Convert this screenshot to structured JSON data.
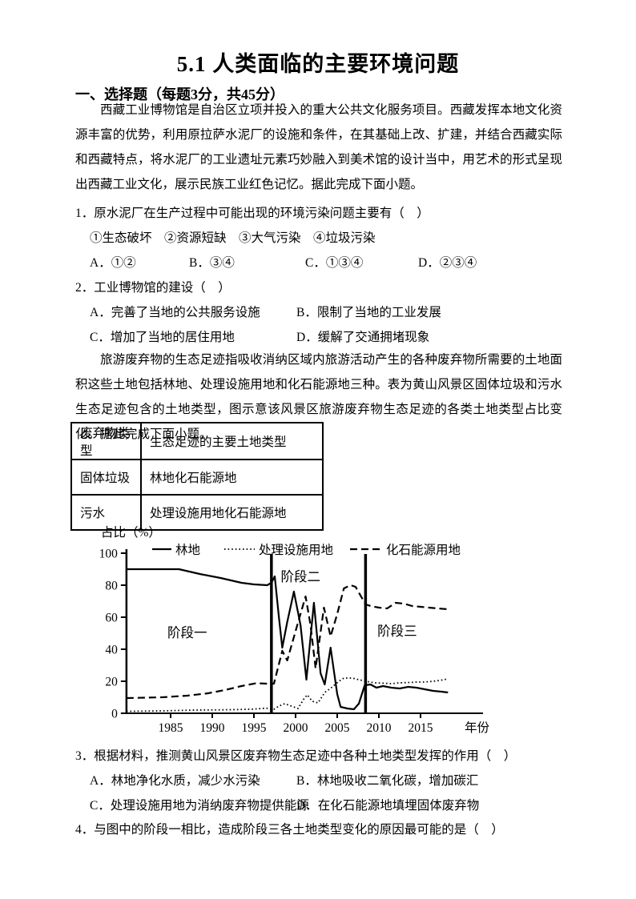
{
  "page": {
    "title": "5.1 人类面临的主要环境问题"
  },
  "section": {
    "heading": "一、选择题（每题3分，共45分）"
  },
  "passage1": {
    "text": "西藏工业博物馆是自治区立项并投入的重大公共文化服务项目。西藏发挥本地文化资源丰富的优势，利用原拉萨水泥厂的设施和条件，在其基础上改、扩建，并结合西藏实际和西藏特点，将水泥厂的工业遗址元素巧妙融入到美术馆的设计当中，用艺术的形式呈现出西藏工业文化，展示民族工业红色记忆。据此完成下面小题。"
  },
  "question1": {
    "stem": "1．原水泥厂在生产过程中可能出现的环境污染问题主要有（　）",
    "sub_options": "①生态破坏　②资源短缺　③大气污染　④垃圾污染",
    "choices": [
      "A．①②",
      "B．③④",
      "C．①③④",
      "D．②③④"
    ]
  },
  "question2": {
    "stem": "2．工业博物馆的建设（　）",
    "choices": [
      "A．完善了当地的公共服务设施",
      "B．限制了当地的工业发展",
      "C．增加了当地的居住用地",
      "D．缓解了交通拥堵现象"
    ]
  },
  "passage2": {
    "text": "旅游废弃物的生态足迹指吸收消纳区域内旅游活动产生的各种废弃物所需要的土地面积这些土地包括林地、处理设施用地和化石能源地三种。表为黄山风景区固体垃圾和污水生态足迹包含的土地类型，图示意该风景区旅游废弃物生态足迹的各类土地类型占比变化。据此完成下面小题。"
  },
  "table": {
    "headers": [
      "废弃物类型",
      "生态足迹的主要土地类型"
    ],
    "rows": [
      [
        "固体垃圾",
        "林地化石能源地"
      ],
      [
        "污水",
        "处理设施用地化石能源地"
      ]
    ]
  },
  "chart_data": {
    "type": "line",
    "ylabel": "占比（%）",
    "xlabel": "年份",
    "ylim": [
      0,
      100
    ],
    "yticks": [
      0,
      20,
      40,
      60,
      80,
      100
    ],
    "xticks": [
      1985,
      1990,
      1995,
      2000,
      2005,
      2010,
      2015
    ],
    "xlim": [
      1979.7,
      2022.5
    ],
    "grid": false,
    "legend_position": "top-inside",
    "stage_dividers_x": [
      1997.1,
      2008.4
    ],
    "stage_labels": [
      {
        "text": "阶段一",
        "x": 1987.0,
        "y": 50
      },
      {
        "text": "阶段二",
        "x": 2000.6,
        "y": 85
      },
      {
        "text": "阶段三",
        "x": 2012.2,
        "y": 51
      }
    ],
    "series": [
      {
        "name": "林地",
        "style": "solid",
        "points": [
          [
            1979.7,
            90
          ],
          [
            1986,
            90
          ],
          [
            1988.5,
            87
          ],
          [
            1991,
            84.5
          ],
          [
            1993.5,
            81.5
          ],
          [
            1995,
            80.5
          ],
          [
            1996.6,
            80
          ],
          [
            1997.1,
            81.5
          ],
          [
            1997.5,
            85.5
          ],
          [
            1998,
            60
          ],
          [
            1998.4,
            41
          ],
          [
            1999,
            57
          ],
          [
            1999.8,
            76
          ],
          [
            2000.6,
            55
          ],
          [
            2001.3,
            21
          ],
          [
            2002.2,
            69
          ],
          [
            2003,
            25
          ],
          [
            2003.5,
            18
          ],
          [
            2004.2,
            41
          ],
          [
            2005,
            12
          ],
          [
            2005.4,
            4
          ],
          [
            2006.2,
            3
          ],
          [
            2007,
            2.5
          ],
          [
            2007.6,
            6
          ],
          [
            2008.3,
            17.5
          ],
          [
            2009,
            18
          ],
          [
            2009.7,
            16
          ],
          [
            2010.5,
            17
          ],
          [
            2011.5,
            16
          ],
          [
            2012.5,
            15.5
          ],
          [
            2013.5,
            16.5
          ],
          [
            2014.5,
            16
          ],
          [
            2015.5,
            15
          ],
          [
            2016.5,
            14
          ],
          [
            2017.5,
            13.5
          ],
          [
            2018.3,
            13
          ]
        ]
      },
      {
        "name": "处理设施用地",
        "style": "dotted",
        "points": [
          [
            1979.7,
            1.2
          ],
          [
            1984,
            1.5
          ],
          [
            1988,
            2
          ],
          [
            1992,
            2.2
          ],
          [
            1995,
            2.6
          ],
          [
            1996.5,
            3.2
          ],
          [
            1997.4,
            2.5
          ],
          [
            1998,
            4.5
          ],
          [
            1998.7,
            6
          ],
          [
            1999.5,
            4.5
          ],
          [
            2000.3,
            3
          ],
          [
            2001,
            9
          ],
          [
            2001.4,
            11.5
          ],
          [
            2002,
            7.5
          ],
          [
            2002.7,
            6.5
          ],
          [
            2003.5,
            13
          ],
          [
            2004.3,
            16
          ],
          [
            2005.2,
            20
          ],
          [
            2005.8,
            22
          ],
          [
            2006.8,
            22
          ],
          [
            2007.6,
            21
          ],
          [
            2008.4,
            20
          ],
          [
            2009.5,
            19
          ],
          [
            2010.5,
            18.8
          ],
          [
            2011.5,
            18.5
          ],
          [
            2012.5,
            19
          ],
          [
            2013.5,
            19.2
          ],
          [
            2014.5,
            19.5
          ],
          [
            2015.5,
            19.5
          ],
          [
            2016.5,
            20
          ],
          [
            2017.3,
            20.5
          ],
          [
            2018.3,
            21.5
          ]
        ]
      },
      {
        "name": "化石能源用地",
        "style": "dashed",
        "points": [
          [
            1979.7,
            9.5
          ],
          [
            1984,
            10
          ],
          [
            1987,
            11
          ],
          [
            1989.5,
            12.5
          ],
          [
            1991.5,
            14.5
          ],
          [
            1993.5,
            17
          ],
          [
            1995.3,
            18.8
          ],
          [
            1996.5,
            18.5
          ],
          [
            1997.4,
            18.5
          ],
          [
            1998.4,
            39
          ],
          [
            1999,
            33
          ],
          [
            2000.2,
            55
          ],
          [
            2001.2,
            73
          ],
          [
            2001.8,
            55
          ],
          [
            2002.4,
            28
          ],
          [
            2003.4,
            66
          ],
          [
            2004.2,
            48
          ],
          [
            2005,
            62
          ],
          [
            2005.8,
            78
          ],
          [
            2006.6,
            80
          ],
          [
            2007.2,
            79
          ],
          [
            2008.4,
            68
          ],
          [
            2009,
            67
          ],
          [
            2010,
            66
          ],
          [
            2011,
            65.5
          ],
          [
            2012,
            69
          ],
          [
            2013,
            68.5
          ],
          [
            2014,
            67
          ],
          [
            2015,
            66.5
          ],
          [
            2016,
            66
          ],
          [
            2017,
            65.5
          ],
          [
            2018.3,
            65
          ]
        ]
      }
    ]
  },
  "question3": {
    "stem": "3．根据材料，推测黄山风景区废弃物生态足迹中各种土地类型发挥的作用（　）",
    "choices": [
      "A．林地净化水质，减少水污染",
      "B．林地吸收二氧化碳，增加碳汇",
      "C．处理设施用地为消纳废弃物提供能源",
      "D．在化石能源地填埋固体废弃物"
    ]
  },
  "question4": {
    "stem": "4．与图中的阶段一相比，造成阶段三各土地类型变化的原因最可能的是（　）"
  }
}
